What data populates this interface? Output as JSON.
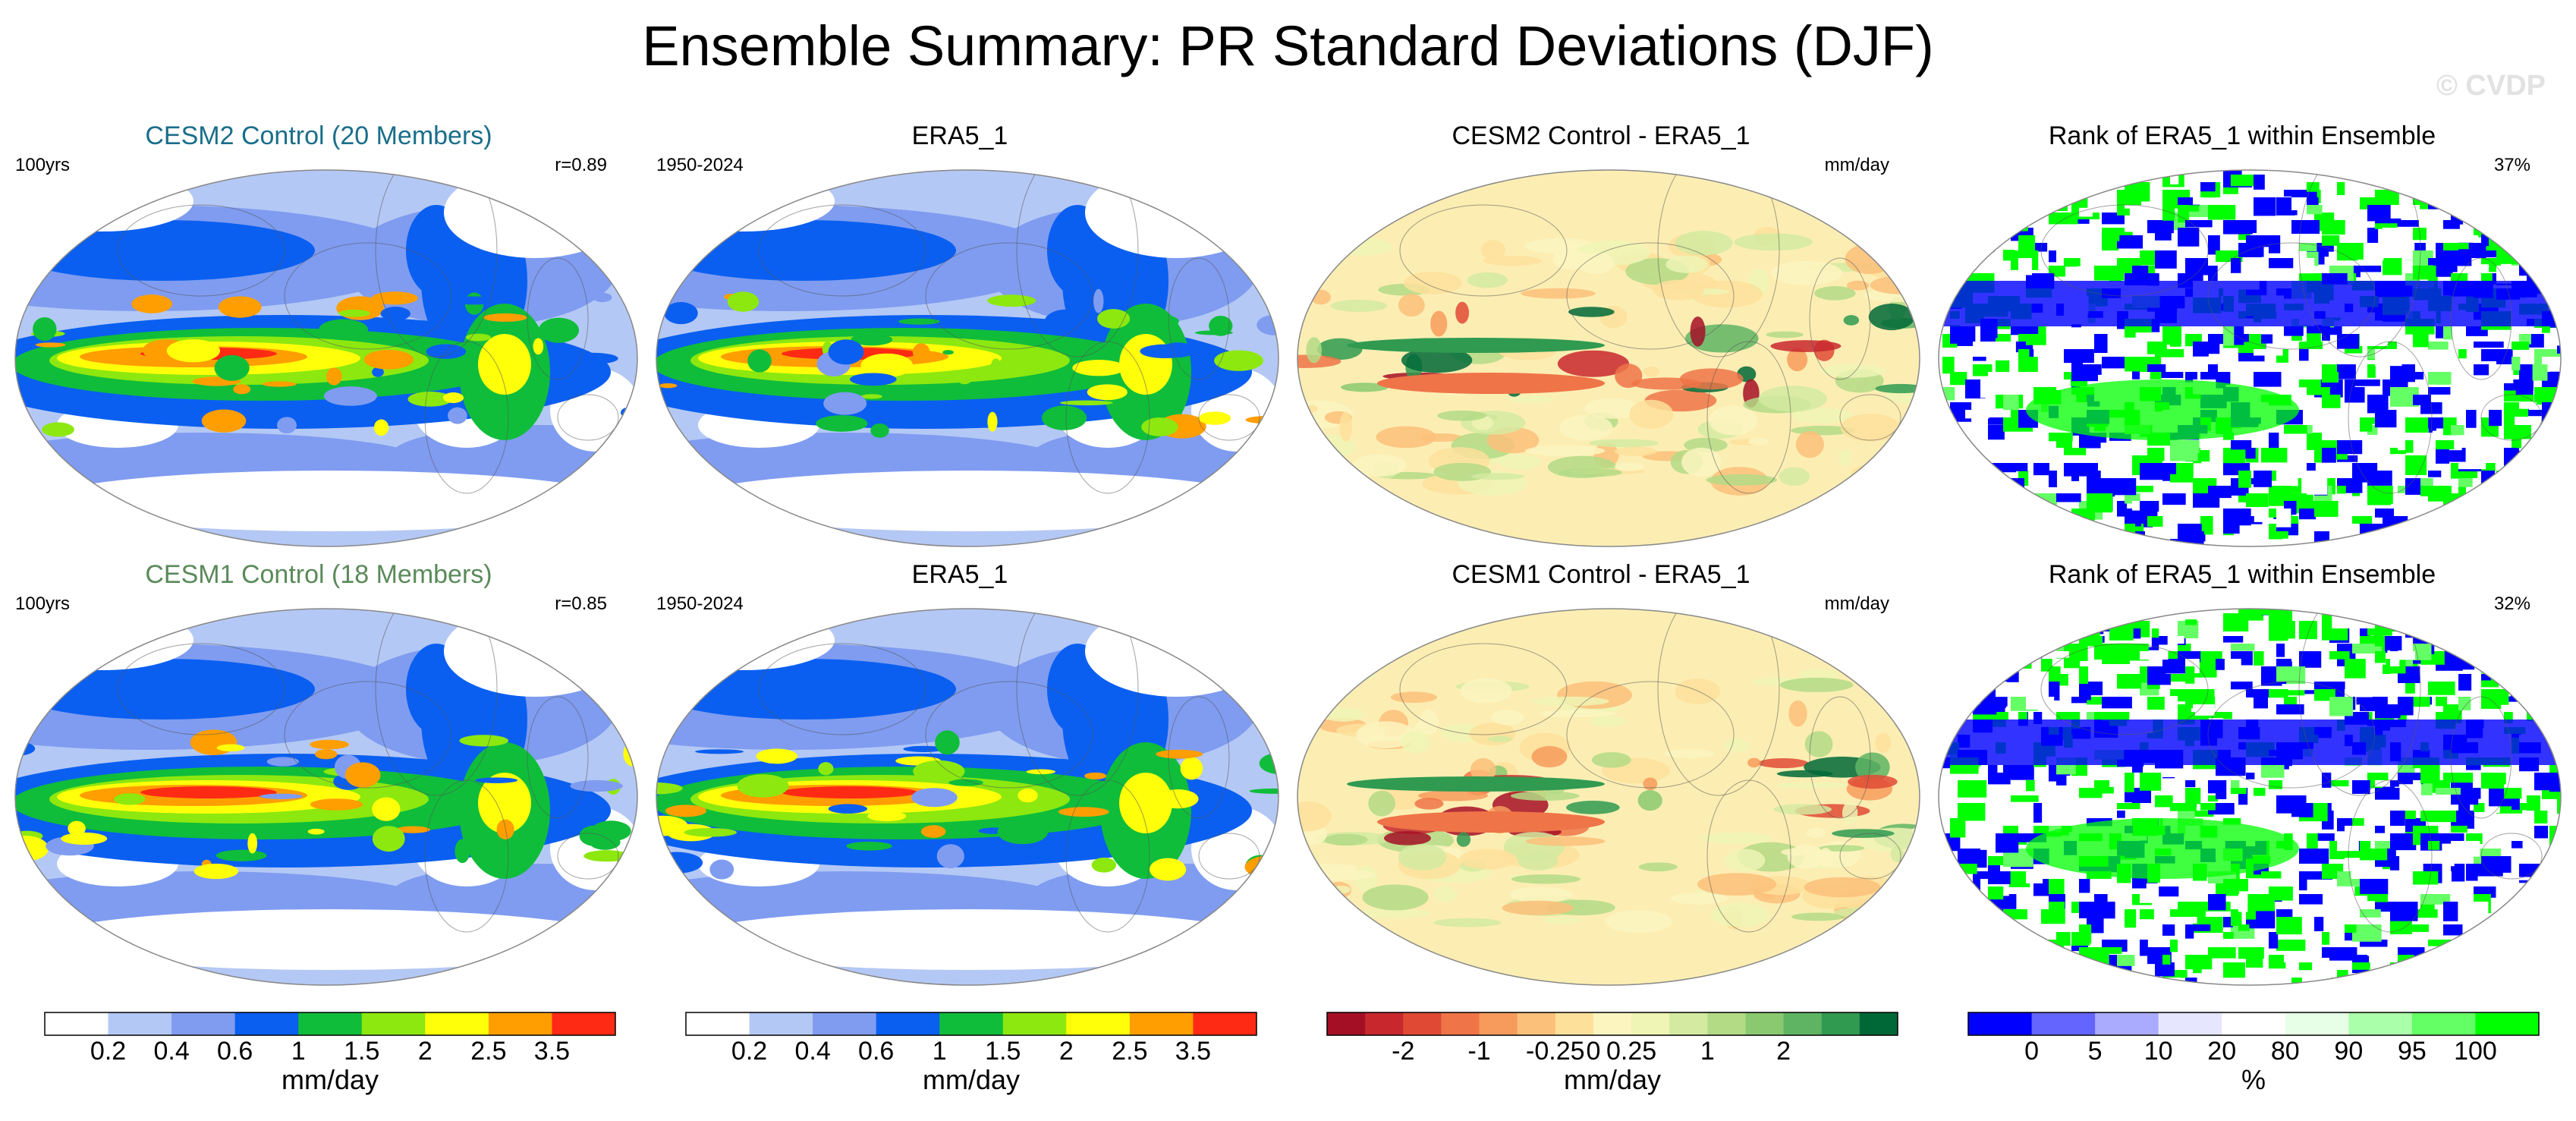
{
  "title": "Ensemble Summary: PR Standard Deviations (DJF)",
  "watermark": "© CVDP",
  "rows": [
    {
      "panels": [
        {
          "title": "CESM2 Control (20 Members)",
          "title_color": "#1a6e8a",
          "left_label": "100yrs",
          "right_label": "r=0.89",
          "kind": "std"
        },
        {
          "title": "ERA5_1",
          "title_color": "#000000",
          "left_label": "1950-2024",
          "right_label": "",
          "kind": "std"
        },
        {
          "title": "CESM2 Control - ERA5_1",
          "title_color": "#000000",
          "left_label": "",
          "right_label": "mm/day",
          "kind": "diff"
        },
        {
          "title": "Rank of ERA5_1 within Ensemble",
          "title_color": "#000000",
          "left_label": "",
          "right_label": "37%",
          "kind": "rank"
        }
      ]
    },
    {
      "panels": [
        {
          "title": "CESM1 Control (18 Members)",
          "title_color": "#5a8a5a",
          "left_label": "100yrs",
          "right_label": "r=0.85",
          "kind": "std"
        },
        {
          "title": "ERA5_1",
          "title_color": "#000000",
          "left_label": "1950-2024",
          "right_label": "",
          "kind": "std"
        },
        {
          "title": "CESM1 Control - ERA5_1",
          "title_color": "#000000",
          "left_label": "",
          "right_label": "mm/day",
          "kind": "diff"
        },
        {
          "title": "Rank of ERA5_1 within Ensemble",
          "title_color": "#000000",
          "left_label": "",
          "right_label": "32%",
          "kind": "rank"
        }
      ]
    }
  ],
  "colorbars": [
    {
      "unit": "mm/day",
      "colors": [
        "#ffffff",
        "#b4c8f5",
        "#7f9cf0",
        "#0a5ff0",
        "#0fbd3a",
        "#8de80f",
        "#ffff0a",
        "#ff9e00",
        "#ff2a14"
      ],
      "tick_labels": [
        "0.2",
        "0.4",
        "0.6",
        "1",
        "1.5",
        "2",
        "2.5",
        "3.5"
      ]
    },
    {
      "unit": "mm/day",
      "colors": [
        "#ffffff",
        "#b4c8f5",
        "#7f9cf0",
        "#0a5ff0",
        "#0fbd3a",
        "#8de80f",
        "#ffff0a",
        "#ff9e00",
        "#ff2a14"
      ],
      "tick_labels": [
        "0.2",
        "0.4",
        "0.6",
        "1",
        "1.5",
        "2",
        "2.5",
        "3.5"
      ]
    },
    {
      "unit": "mm/day",
      "colors": [
        "#a50f26",
        "#c8272e",
        "#e04a35",
        "#ef7448",
        "#f79b5c",
        "#fbc07a",
        "#fde19b",
        "#fcf5c0",
        "#eef5b5",
        "#d4eaa0",
        "#b3db86",
        "#8ac970",
        "#5fb464",
        "#2f9a50",
        "#006837"
      ],
      "tick_labels": [
        "-2",
        "-1",
        "-0.25",
        "0",
        "0.25",
        "1",
        "2"
      ],
      "tick_positions": [
        2,
        4,
        6,
        7,
        8,
        10,
        12
      ]
    },
    {
      "unit": "%",
      "colors": [
        "#0000ff",
        "#6464ff",
        "#aaaaff",
        "#e6e6ff",
        "#ffffff",
        "#e6ffe6",
        "#aaffaa",
        "#64ff64",
        "#00ff00"
      ],
      "tick_labels": [
        "0",
        "5",
        "10",
        "20",
        "80",
        "90",
        "95",
        "100"
      ]
    }
  ]
}
